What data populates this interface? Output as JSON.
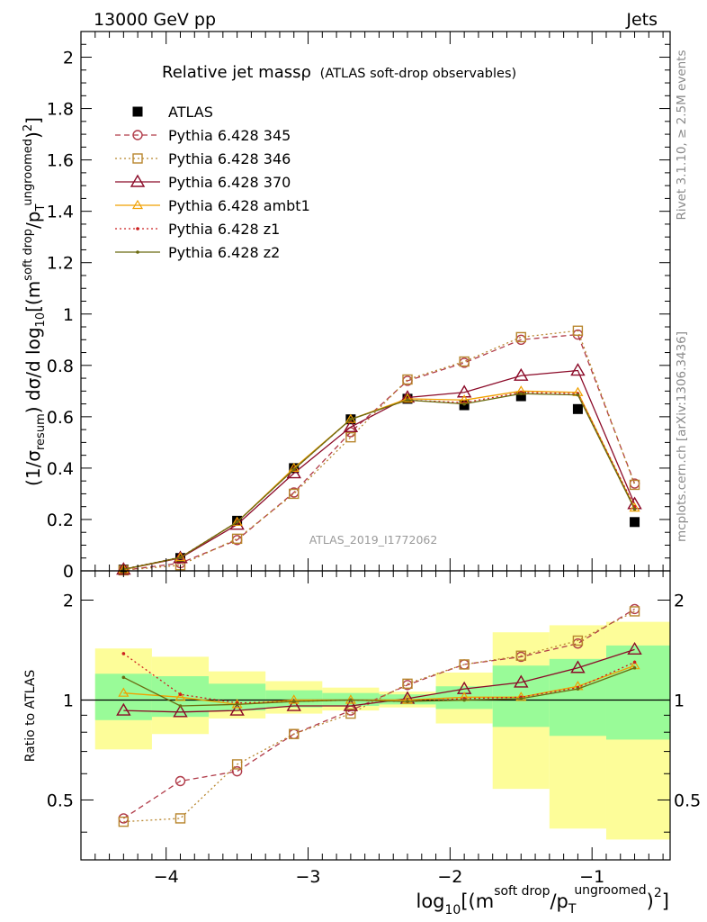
{
  "header": {
    "left": "13000 GeV pp",
    "right": "Jets"
  },
  "side_labels": {
    "rivet": "Rivet 3.1.10, ≥ 2.5M events",
    "mcplots": "mcplots.cern.ch [arXiv:1306.3436]"
  },
  "chart_data": [
    {
      "type": "line",
      "title": "Relative jet massρ",
      "subtitle": "(ATLAS soft-drop observables)",
      "watermark": "ATLAS_2019_I1772062",
      "ylabel": "(1/σresum) dσ/d log10[(m soft drop / pT ungroomed)2]",
      "xlim": [
        -4.6,
        -0.45
      ],
      "ylim": [
        0,
        2.1
      ],
      "ytick_labels": [
        "0",
        "0.2",
        "0.4",
        "0.6",
        "0.8",
        "1",
        "1.2",
        "1.4",
        "1.6",
        "1.8",
        "2"
      ],
      "x": [
        -4.3,
        -3.9,
        -3.5,
        -3.1,
        -2.7,
        -2.3,
        -1.9,
        -1.5,
        -1.1,
        -0.7
      ],
      "legend_position": "top-left",
      "series": [
        {
          "name": "ATLAS",
          "color": "#000000",
          "style": "data",
          "values": [
            0.005,
            0.05,
            0.195,
            0.4,
            0.59,
            0.67,
            0.645,
            0.68,
            0.63,
            0.19
          ]
        },
        {
          "name": "Pythia 6.428 345",
          "color": "#b03a48",
          "style": "dashed",
          "marker": "circle",
          "values": [
            0.002,
            0.03,
            0.12,
            0.305,
            0.54,
            0.74,
            0.81,
            0.9,
            0.92,
            0.34
          ]
        },
        {
          "name": "Pythia 6.428 346",
          "color": "#b8862e",
          "style": "dotted",
          "marker": "square",
          "values": [
            0.002,
            0.022,
            0.125,
            0.3,
            0.52,
            0.745,
            0.815,
            0.91,
            0.935,
            0.335
          ]
        },
        {
          "name": "Pythia 6.428 370",
          "color": "#8b0a28",
          "style": "solid",
          "marker": "triangle",
          "values": [
            0.005,
            0.05,
            0.18,
            0.38,
            0.56,
            0.675,
            0.695,
            0.76,
            0.78,
            0.26
          ]
        },
        {
          "name": "Pythia 6.428 ambt1",
          "color": "#f0a000",
          "style": "solid",
          "marker": "small-triangle",
          "values": [
            0.005,
            0.052,
            0.19,
            0.4,
            0.59,
            0.67,
            0.665,
            0.7,
            0.695,
            0.245
          ]
        },
        {
          "name": "Pythia 6.428 z1",
          "color": "#cc2020",
          "style": "dotted",
          "marker": "dot",
          "values": [
            0.007,
            0.053,
            0.19,
            0.395,
            0.59,
            0.665,
            0.655,
            0.695,
            0.69,
            0.25
          ]
        },
        {
          "name": "Pythia 6.428 z2",
          "color": "#6b6b10",
          "style": "solid",
          "marker": "dot",
          "values": [
            0.006,
            0.052,
            0.19,
            0.395,
            0.59,
            0.665,
            0.65,
            0.69,
            0.685,
            0.24
          ]
        }
      ]
    },
    {
      "type": "line",
      "ylabel": "Ratio to ATLAS",
      "xlabel": "log10[(m soft drop / pT ungroomed)2]",
      "xlim": [
        -4.6,
        -0.45
      ],
      "ylim": [
        0.33,
        2.45
      ],
      "ytick_labels": [
        "0.5",
        "1",
        "2"
      ],
      "ytick_values": [
        0.5,
        1,
        2
      ],
      "xtick_labels": [
        "−4",
        "−3",
        "−2",
        "−1"
      ],
      "xtick_values": [
        -4,
        -3,
        -2,
        -1
      ],
      "x": [
        -4.3,
        -3.9,
        -3.5,
        -3.1,
        -2.7,
        -2.3,
        -1.9,
        -1.5,
        -1.1,
        -0.7
      ],
      "bins": [
        [
          -4.5,
          -4.1
        ],
        [
          -4.1,
          -3.7
        ],
        [
          -3.7,
          -3.3
        ],
        [
          -3.3,
          -2.9
        ],
        [
          -2.9,
          -2.5
        ],
        [
          -2.5,
          -2.1
        ],
        [
          -2.1,
          -1.7
        ],
        [
          -1.7,
          -1.3
        ],
        [
          -1.3,
          -0.9
        ],
        [
          -0.9,
          -0.45
        ]
      ],
      "band_inner": [
        [
          0.87,
          1.2
        ],
        [
          0.89,
          1.18
        ],
        [
          0.93,
          1.12
        ],
        [
          0.95,
          1.07
        ],
        [
          0.96,
          1.05
        ],
        [
          0.97,
          1.04
        ],
        [
          0.94,
          1.1
        ],
        [
          0.83,
          1.27
        ],
        [
          0.78,
          1.33
        ],
        [
          0.76,
          1.46
        ]
      ],
      "band_outer": [
        [
          0.71,
          1.43
        ],
        [
          0.79,
          1.35
        ],
        [
          0.88,
          1.22
        ],
        [
          0.91,
          1.14
        ],
        [
          0.93,
          1.09
        ],
        [
          0.95,
          1.06
        ],
        [
          0.85,
          1.21
        ],
        [
          0.54,
          1.6
        ],
        [
          0.41,
          1.68
        ],
        [
          0.38,
          1.72
        ]
      ],
      "series": [
        {
          "name": "Pythia 6.428 345",
          "color": "#b03a48",
          "style": "dashed",
          "marker": "circle",
          "values": [
            0.44,
            0.57,
            0.61,
            0.79,
            0.93,
            1.11,
            1.28,
            1.35,
            1.48,
            1.88
          ]
        },
        {
          "name": "Pythia 6.428 346",
          "color": "#b8862e",
          "style": "dotted",
          "marker": "square",
          "values": [
            0.43,
            0.44,
            0.64,
            0.79,
            0.91,
            1.12,
            1.28,
            1.36,
            1.51,
            1.85
          ]
        },
        {
          "name": "Pythia 6.428 370",
          "color": "#8b0a28",
          "style": "solid",
          "marker": "triangle",
          "values": [
            0.93,
            0.92,
            0.93,
            0.96,
            0.96,
            1.01,
            1.08,
            1.13,
            1.25,
            1.42
          ]
        },
        {
          "name": "Pythia 6.428 ambt1",
          "color": "#f0a000",
          "style": "solid",
          "marker": "small-triangle",
          "values": [
            1.05,
            1.02,
            0.97,
            1.0,
            1.0,
            1.0,
            1.02,
            1.02,
            1.1,
            1.27
          ]
        },
        {
          "name": "Pythia 6.428 z1",
          "color": "#cc2020",
          "style": "dotted",
          "marker": "dot",
          "values": [
            1.38,
            1.04,
            0.98,
            0.99,
            1.0,
            0.99,
            1.01,
            1.02,
            1.09,
            1.3
          ]
        },
        {
          "name": "Pythia 6.428 z2",
          "color": "#6b6b10",
          "style": "solid",
          "marker": "dot",
          "values": [
            1.17,
            0.96,
            0.97,
            0.99,
            1.0,
            0.99,
            1.0,
            1.01,
            1.08,
            1.25
          ]
        }
      ]
    }
  ]
}
